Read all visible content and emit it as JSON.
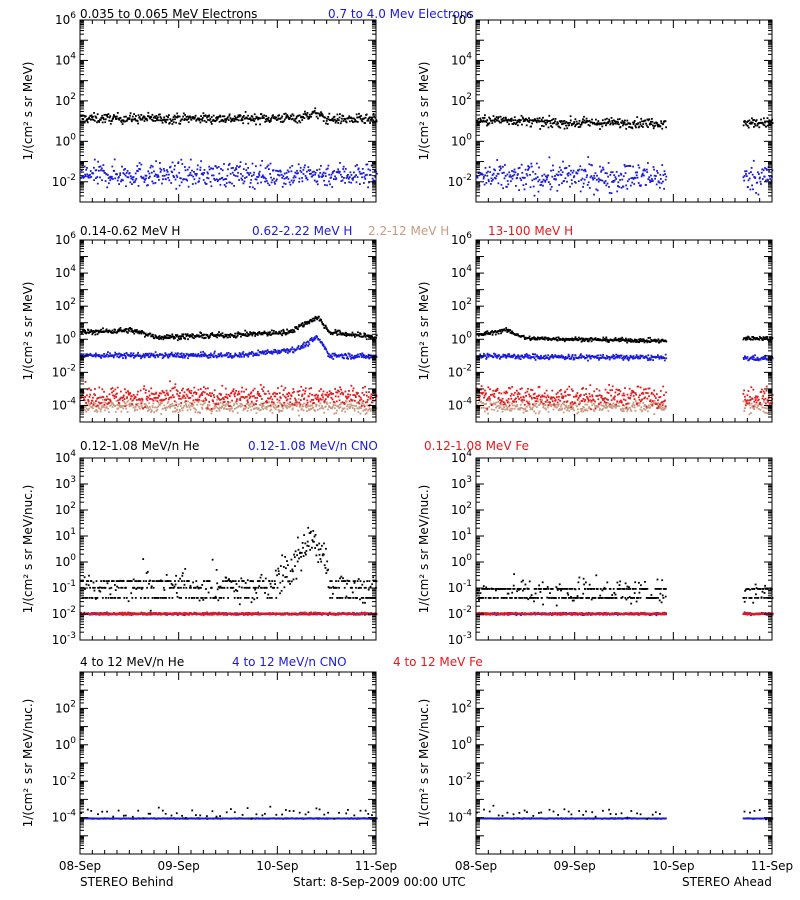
{
  "colors": {
    "black": "#000000",
    "blue": "#1a1adc",
    "tan": "#c89b82",
    "red": "#e41a1c"
  },
  "panel_headers": [
    {
      "row": 0,
      "items": [
        {
          "text": "0.035 to 0.065 MeV Electrons",
          "color": "#000000"
        },
        {
          "text": "0.7 to 4.0 Mev Electrons",
          "color": "#1a1adc"
        }
      ]
    },
    {
      "row": 1,
      "items": [
        {
          "text": "0.14-0.62 MeV H",
          "color": "#000000"
        },
        {
          "text": "0.62-2.22 MeV H",
          "color": "#1a1adc"
        },
        {
          "text": "2.2-12 MeV H",
          "color": "#c89b82"
        },
        {
          "text": "13-100 MeV H",
          "color": "#e41a1c"
        }
      ]
    },
    {
      "row": 2,
      "items": [
        {
          "text": "0.12-1.08 MeV/n He",
          "color": "#000000"
        },
        {
          "text": "0.12-1.08 MeV/n CNO",
          "color": "#1a1adc"
        },
        {
          "text": "0.12-1.08 MeV Fe",
          "color": "#e41a1c"
        }
      ]
    },
    {
      "row": 3,
      "items": [
        {
          "text": "4 to 12 MeV/n He",
          "color": "#000000"
        },
        {
          "text": "4 to 12 MeV/n CNO",
          "color": "#1a1adc"
        },
        {
          "text": "4 to 12 MeV Fe",
          "color": "#e41a1c"
        }
      ]
    }
  ],
  "x_ticks": [
    "08-Sep",
    "09-Sep",
    "10-Sep",
    "11-Sep"
  ],
  "footer": {
    "left": "STEREO Behind",
    "center": "Start:  8-Sep-2009 00:00 UTC",
    "right": "STEREO Ahead"
  },
  "chart_data": [
    {
      "type": "scatter",
      "spacecraft": "STEREO Behind",
      "row": 0,
      "ylabel": "1/(cm² s sr MeV)",
      "yscale": "log",
      "ylim": [
        0.001,
        1000000
      ],
      "ytick_exp": [
        -2,
        0,
        2,
        4,
        6
      ],
      "xlim_days": [
        0,
        3
      ],
      "series": [
        {
          "name": "0.035 to 0.065 MeV Electrons",
          "color": "#000000",
          "gaps": [],
          "profile": [
            [
              0,
              15
            ],
            [
              1.6,
              15
            ],
            [
              2.2,
              16
            ],
            [
              2.38,
              28
            ],
            [
              2.48,
              14
            ],
            [
              3,
              13
            ]
          ],
          "scatter": 0.12
        },
        {
          "name": "0.7 to 4.0 Mev Electrons",
          "color": "#1a1adc",
          "gaps": [],
          "profile": [
            [
              0,
              0.025
            ],
            [
              3,
              0.025
            ]
          ],
          "scatter": 0.3
        }
      ]
    },
    {
      "type": "scatter",
      "spacecraft": "STEREO Ahead",
      "row": 0,
      "ylabel": "1/(cm² s sr MeV)",
      "yscale": "log",
      "ylim": [
        0.001,
        1000000
      ],
      "ytick_exp": [
        -2,
        0,
        2,
        4,
        6
      ],
      "xlim_days": [
        0,
        3
      ],
      "series": [
        {
          "name": "0.035 to 0.065 MeV Electrons",
          "color": "#000000",
          "gaps": [
            [
              1.92,
              2.7
            ]
          ],
          "profile": [
            [
              0,
              11
            ],
            [
              0.3,
              13
            ],
            [
              0.7,
              9
            ],
            [
              3,
              9
            ]
          ],
          "scatter": 0.12
        },
        {
          "name": "0.7 to 4.0 Mev Electrons",
          "color": "#1a1adc",
          "gaps": [
            [
              1.92,
              2.7
            ]
          ],
          "profile": [
            [
              0,
              0.018
            ],
            [
              3,
              0.02
            ]
          ],
          "scatter": 0.35
        }
      ]
    },
    {
      "type": "scatter",
      "spacecraft": "STEREO Behind",
      "row": 1,
      "ylabel": "1/(cm² s sr MeV)",
      "yscale": "log",
      "ylim": [
        1e-05,
        1000000
      ],
      "ytick_exp": [
        -4,
        -2,
        0,
        2,
        4,
        6
      ],
      "xlim_days": [
        0,
        3
      ],
      "series": [
        {
          "name": "0.14-0.62 MeV H",
          "color": "#000000",
          "gaps": [],
          "profile": [
            [
              0,
              3
            ],
            [
              0.5,
              4
            ],
            [
              0.8,
              1.5
            ],
            [
              1.5,
              2
            ],
            [
              2.1,
              3
            ],
            [
              2.4,
              25
            ],
            [
              2.52,
              3
            ],
            [
              3,
              1.5
            ]
          ],
          "scatter": 0.08
        },
        {
          "name": "0.62-2.22 MeV H",
          "color": "#1a1adc",
          "gaps": [],
          "profile": [
            [
              0,
              0.12
            ],
            [
              1.6,
              0.12
            ],
            [
              2.2,
              0.3
            ],
            [
              2.4,
              1.5
            ],
            [
              2.52,
              0.12
            ],
            [
              3,
              0.1
            ]
          ],
          "scatter": 0.08
        },
        {
          "name": "2.2-12 MeV H",
          "color": "#c89b82",
          "gaps": [],
          "profile": [
            [
              0,
              0.0001
            ],
            [
              3,
              0.0001
            ]
          ],
          "scatter": 0.2
        },
        {
          "name": "13-100 MeV H",
          "color": "#e41a1c",
          "gaps": [],
          "profile": [
            [
              0,
              0.0004
            ],
            [
              3,
              0.0004
            ]
          ],
          "scatter": 0.3
        }
      ]
    },
    {
      "type": "scatter",
      "spacecraft": "STEREO Ahead",
      "row": 1,
      "ylabel": "1/(cm² s sr MeV)",
      "yscale": "log",
      "ylim": [
        1e-05,
        1000000
      ],
      "ytick_exp": [
        -4,
        -2,
        0,
        2,
        4,
        6
      ],
      "xlim_days": [
        0,
        3
      ],
      "series": [
        {
          "name": "0.14-0.62 MeV H",
          "color": "#000000",
          "gaps": [
            [
              1.92,
              2.7
            ]
          ],
          "profile": [
            [
              0,
              2
            ],
            [
              0.3,
              4
            ],
            [
              0.5,
              1.3
            ],
            [
              1.92,
              0.9
            ],
            [
              2.7,
              1.3
            ],
            [
              3,
              1.3
            ]
          ],
          "scatter": 0.06
        },
        {
          "name": "0.62-2.22 MeV H",
          "color": "#1a1adc",
          "gaps": [
            [
              1.92,
              2.7
            ]
          ],
          "profile": [
            [
              0,
              0.12
            ],
            [
              0.5,
              0.1
            ],
            [
              3,
              0.08
            ]
          ],
          "scatter": 0.08
        },
        {
          "name": "2.2-12 MeV H",
          "color": "#c89b82",
          "gaps": [
            [
              1.92,
              2.7
            ]
          ],
          "profile": [
            [
              0,
              0.0001
            ],
            [
              3,
              0.0001
            ]
          ],
          "scatter": 0.2
        },
        {
          "name": "13-100 MeV H",
          "color": "#e41a1c",
          "gaps": [
            [
              1.92,
              2.7
            ]
          ],
          "profile": [
            [
              0,
              0.0004
            ],
            [
              3,
              0.0004
            ]
          ],
          "scatter": 0.3
        }
      ]
    },
    {
      "type": "scatter",
      "spacecraft": "STEREO Behind",
      "row": 2,
      "ylabel": "1/(cm² s sr MeV/nuc.)",
      "yscale": "log",
      "ylim": [
        0.001,
        10000
      ],
      "ytick_exp": [
        -3,
        -2,
        -1,
        0,
        1,
        2,
        3,
        4
      ],
      "xlim_days": [
        0,
        3
      ],
      "series": [
        {
          "name": "0.12-1.08 MeV/n He",
          "color": "#000000",
          "gaps": [],
          "profile": [
            [
              0,
              0.12
            ],
            [
              1.8,
              0.12
            ],
            [
              2.1,
              0.5
            ],
            [
              2.35,
              8
            ],
            [
              2.45,
              2
            ],
            [
              2.55,
              0.12
            ],
            [
              3,
              0.12
            ]
          ],
          "scatter": 0.35,
          "levels": [
            0.045,
            0.11,
            0.2
          ]
        },
        {
          "name": "0.12-1.08 MeV/n CNO",
          "color": "#1a1adc",
          "gaps": [],
          "profile": [
            [
              0,
              0.011
            ],
            [
              3,
              0.011
            ]
          ],
          "scatter": 0.02
        },
        {
          "name": "0.12-1.08 MeV Fe",
          "color": "#e41a1c",
          "gaps": [],
          "profile": [
            [
              0,
              0.011
            ],
            [
              3,
              0.011
            ]
          ],
          "scatter": 0.02
        }
      ]
    },
    {
      "type": "scatter",
      "spacecraft": "STEREO Ahead",
      "row": 2,
      "ylabel": "1/(cm² s sr MeV/nuc.)",
      "yscale": "log",
      "ylim": [
        0.001,
        10000
      ],
      "ytick_exp": [
        -3,
        -2,
        -1,
        0,
        1,
        2,
        3,
        4
      ],
      "xlim_days": [
        0,
        3
      ],
      "series": [
        {
          "name": "0.12-1.08 MeV/n He",
          "color": "#000000",
          "gaps": [
            [
              1.92,
              2.7
            ]
          ],
          "profile": [
            [
              0,
              0.1
            ],
            [
              3,
              0.08
            ]
          ],
          "scatter": 0.25,
          "levels": [
            0.045,
            0.1
          ]
        },
        {
          "name": "0.12-1.08 MeV/n CNO",
          "color": "#1a1adc",
          "gaps": [
            [
              1.92,
              2.7
            ]
          ],
          "profile": [
            [
              0,
              0.011
            ],
            [
              3,
              0.011
            ]
          ],
          "scatter": 0.02
        },
        {
          "name": "0.12-1.08 MeV Fe",
          "color": "#e41a1c",
          "gaps": [
            [
              1.92,
              2.7
            ]
          ],
          "profile": [
            [
              0,
              0.011
            ],
            [
              3,
              0.011
            ]
          ],
          "scatter": 0.02
        }
      ]
    },
    {
      "type": "scatter",
      "spacecraft": "STEREO Behind",
      "row": 3,
      "ylabel": "1/(cm² s sr MeV/nuc.)",
      "yscale": "log",
      "ylim": [
        1e-06,
        10000
      ],
      "ytick_exp": [
        -4,
        -2,
        0,
        2
      ],
      "xlim_days": [
        0,
        3
      ],
      "series": [
        {
          "name": "4 to 12 MeV/n CNO",
          "color": "#1a1adc",
          "gaps": [],
          "profile": [
            [
              0,
              0.0001
            ],
            [
              3,
              0.0001
            ]
          ],
          "scatter": 0.01
        },
        {
          "name": "4 to 12 MeV/n He",
          "color": "#000000",
          "gaps": [],
          "profile": [
            [
              0,
              0.0002
            ],
            [
              3,
              0.0002
            ]
          ],
          "scatter": 0.15,
          "sparse": true
        }
      ]
    },
    {
      "type": "scatter",
      "spacecraft": "STEREO Ahead",
      "row": 3,
      "ylabel": "1/(cm² s sr MeV/nuc.)",
      "yscale": "log",
      "ylim": [
        1e-06,
        10000
      ],
      "ytick_exp": [
        -4,
        -2,
        0,
        2
      ],
      "xlim_days": [
        0,
        3
      ],
      "series": [
        {
          "name": "4 to 12 MeV/n CNO",
          "color": "#1a1adc",
          "gaps": [
            [
              1.92,
              2.7
            ]
          ],
          "profile": [
            [
              0,
              0.0001
            ],
            [
              3,
              0.0001
            ]
          ],
          "scatter": 0.01
        },
        {
          "name": "4 to 12 MeV/n He",
          "color": "#000000",
          "gaps": [
            [
              1.92,
              2.7
            ]
          ],
          "profile": [
            [
              0,
              0.0002
            ],
            [
              3,
              0.0002
            ]
          ],
          "scatter": 0.15,
          "sparse": true
        }
      ]
    }
  ]
}
